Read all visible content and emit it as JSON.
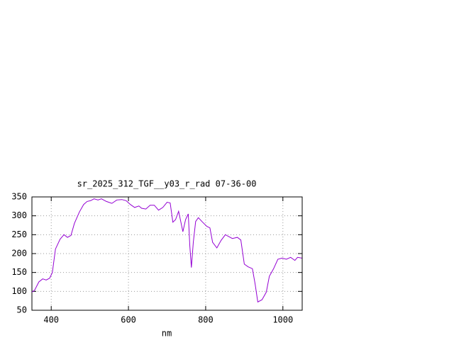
{
  "chart_data": {
    "type": "line",
    "title": "sr_2025_312_TGF__y03_r_rad 07-36-00",
    "x_label": "nm",
    "xlim": [
      350,
      1050
    ],
    "xticks": [
      400,
      600,
      800,
      1000
    ],
    "ylim": [
      50,
      350
    ],
    "yticks": [
      50,
      100,
      150,
      200,
      250,
      300,
      350
    ],
    "grid": true,
    "series": [
      {
        "color": "#9400d3",
        "x": [
          350,
          357,
          368,
          378,
          387,
          396,
          403,
          411,
          423,
          433,
          442,
          451,
          460,
          473,
          484,
          493,
          502,
          511,
          521,
          530,
          543,
          557,
          570,
          583,
          594,
          605,
          616,
          627,
          634,
          645,
          656,
          667,
          678,
          689,
          700,
          708,
          715,
          722,
          730,
          741,
          748,
          755,
          759,
          763,
          768,
          774,
          781,
          792,
          803,
          811,
          818,
          829,
          840,
          851,
          858,
          869,
          882,
          891,
          900,
          910,
          921,
          928,
          935,
          946,
          957,
          965,
          976,
          987,
          998,
          1009,
          1020,
          1031,
          1038,
          1049
        ],
        "values": [
          98,
          103,
          125,
          133,
          130,
          135,
          150,
          212,
          238,
          250,
          243,
          248,
          280,
          310,
          330,
          338,
          340,
          345,
          342,
          345,
          338,
          333,
          342,
          343,
          340,
          330,
          322,
          326,
          320,
          318,
          328,
          328,
          315,
          322,
          336,
          334,
          283,
          290,
          312,
          258,
          290,
          305,
          220,
          163,
          230,
          285,
          295,
          283,
          272,
          268,
          230,
          215,
          235,
          250,
          246,
          240,
          243,
          236,
          172,
          165,
          160,
          120,
          72,
          78,
          98,
          140,
          160,
          185,
          188,
          185,
          190,
          182,
          190,
          188
        ]
      }
    ]
  }
}
